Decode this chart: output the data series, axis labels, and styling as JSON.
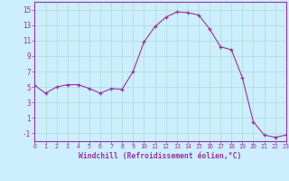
{
  "x": [
    0,
    1,
    2,
    3,
    4,
    5,
    6,
    7,
    8,
    9,
    10,
    11,
    12,
    13,
    14,
    15,
    16,
    17,
    18,
    19,
    20,
    21,
    22,
    23
  ],
  "y": [
    5.2,
    4.2,
    5.0,
    5.3,
    5.3,
    4.8,
    4.2,
    4.8,
    4.7,
    7.0,
    10.8,
    12.8,
    14.0,
    14.7,
    14.6,
    14.3,
    12.5,
    10.2,
    9.8,
    6.2,
    0.5,
    -1.2,
    -1.5,
    -1.2
  ],
  "line_color": "#9b30a0",
  "marker_color": "#9b30a0",
  "bg_color": "#cceeff",
  "grid_color": "#aaddcc",
  "xlabel": "Windchill (Refroidissement éolien,°C)",
  "xlim": [
    0,
    23
  ],
  "ylim": [
    -2,
    16
  ],
  "yticks": [
    -1,
    1,
    3,
    5,
    7,
    9,
    11,
    13,
    15
  ],
  "xticks": [
    0,
    1,
    2,
    3,
    4,
    5,
    6,
    7,
    8,
    9,
    10,
    11,
    12,
    13,
    14,
    15,
    16,
    17,
    18,
    19,
    20,
    21,
    22,
    23
  ],
  "xlabel_color": "#9b30a0",
  "tick_color": "#9b30a0",
  "spine_color": "#9b30a0"
}
